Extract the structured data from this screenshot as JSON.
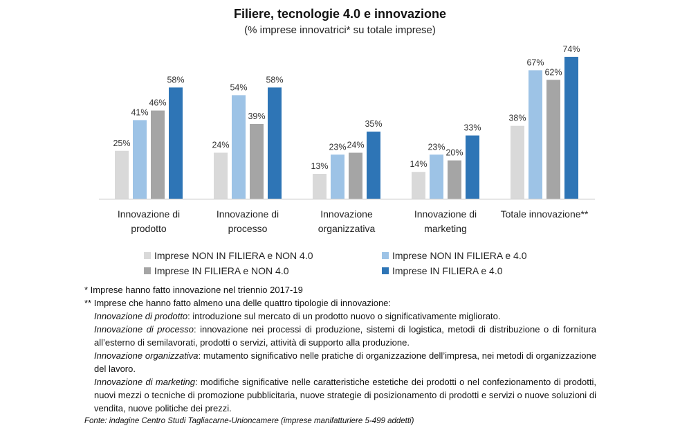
{
  "chart_data": {
    "type": "bar",
    "title": "Filiere, tecnologie 4.0 e innovazione",
    "subtitle": "(% imprese innovatrici* su totale imprese)",
    "xlabel": "",
    "ylabel": "",
    "ylim": [
      0,
      80
    ],
    "grid": false,
    "legend_position": "bottom",
    "categories": [
      [
        "Innovazione di",
        "prodotto"
      ],
      [
        "Innovazione di",
        "processo"
      ],
      [
        "Innovazione",
        "organizzativa"
      ],
      [
        "Innovazione di",
        "marketing"
      ],
      [
        "Totale innovazione**"
      ]
    ],
    "series": [
      {
        "name": "Imprese NON IN FILIERA e NON 4.0",
        "color": "#d9d9d9",
        "values": [
          25,
          24,
          13,
          14,
          38
        ]
      },
      {
        "name": "Imprese NON IN FILIERA e 4.0",
        "color": "#9dc3e6",
        "values": [
          41,
          54,
          23,
          23,
          67
        ]
      },
      {
        "name": "Imprese IN FILIERA e NON 4.0",
        "color": "#a5a5a5",
        "values": [
          46,
          39,
          24,
          20,
          62
        ]
      },
      {
        "name": "Imprese IN FILIERA e 4.0",
        "color": "#2e75b6",
        "values": [
          58,
          58,
          35,
          33,
          74
        ]
      }
    ],
    "value_suffix": "%"
  },
  "notes": {
    "n1": "* Imprese hanno fatto innovazione nel triennio 2017-19",
    "n2": "** Imprese che hanno fatto almeno una delle quattro tipologie di innovazione:",
    "defs": [
      {
        "term": "Innovazione di prodotto",
        "text": ": introduzione sul mercato di un prodotto nuovo o significativamente migliorato."
      },
      {
        "term": "Innovazione di processo",
        "text": ": innovazione nei processi di produzione, sistemi di logistica, metodi di distribuzione o di fornitura all’esterno di semilavorati, prodotti o servizi, attività di supporto alla produzione."
      },
      {
        "term": "Innovazione organizzativa",
        "text": ": mutamento significativo nelle pratiche di organizzazione dell’impresa, nei metodi di organizzazione del lavoro."
      },
      {
        "term": "Innovazione di marketing",
        "text": ": modifiche significative nelle caratteristiche estetiche dei prodotti o nel confezionamento di prodotti, nuovi mezzi o tecniche di promozione pubblicitaria, nuove strategie di posizionamento di prodotti e servizi o nuove soluzioni di vendita, nuove politiche dei prezzi."
      }
    ],
    "source": "Fonte: indagine Centro Studi Tagliacarne-Unioncamere (imprese manifatturiere 5-499 addetti)"
  }
}
